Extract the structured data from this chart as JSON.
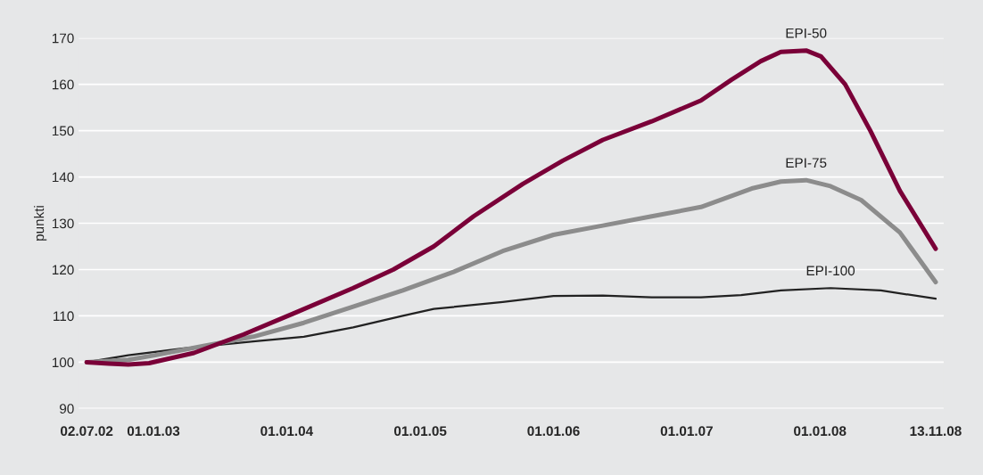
{
  "chart_data": {
    "type": "line",
    "ylabel": "punkti",
    "xlim": [
      "2002-06-10",
      "2008-12-05"
    ],
    "ylim": [
      90,
      170
    ],
    "xticks": [
      {
        "value": "2002-07-02",
        "label": "02.07.02"
      },
      {
        "value": "2003-01-01",
        "label": "01.01.03"
      },
      {
        "value": "2004-01-01",
        "label": "01.01.04"
      },
      {
        "value": "2005-01-01",
        "label": "01.01.05"
      },
      {
        "value": "2006-01-01",
        "label": "01.01.06"
      },
      {
        "value": "2007-01-01",
        "label": "01.01.07"
      },
      {
        "value": "2008-01-01",
        "label": "01.01.08"
      },
      {
        "value": "2008-11-13",
        "label": "13.11.08"
      }
    ],
    "yticks": [
      90,
      100,
      110,
      120,
      130,
      140,
      150,
      160,
      170
    ],
    "grid": "y",
    "legend": false,
    "marker": "none",
    "line_style": "solid",
    "series": [
      {
        "name": "EPI-50",
        "color": "#7a0038",
        "x": [
          "2002-07-02",
          "2002-09-01",
          "2002-10-24",
          "2002-12-20",
          "2003-04-22",
          "2003-09-05",
          "2004-01-19",
          "2004-07-01",
          "2004-10-19",
          "2005-02-07",
          "2005-05-27",
          "2005-10-09",
          "2006-01-26",
          "2006-05-16",
          "2006-09-27",
          "2007-02-09",
          "2007-05-04",
          "2007-07-23",
          "2007-09-16",
          "2007-11-24",
          "2008-01-04",
          "2008-03-10",
          "2008-05-18",
          "2008-08-07",
          "2008-11-13"
        ],
        "values": [
          100,
          99.7,
          99.5,
          99.8,
          102,
          106,
          110.5,
          116,
          120,
          125,
          131.5,
          138.5,
          143.5,
          148,
          152,
          156.5,
          161,
          165,
          167,
          167.3,
          166,
          160,
          150,
          137,
          124.5
        ]
      },
      {
        "name": "EPI-75",
        "color": "#8c8c8c",
        "x": [
          "2002-07-02",
          "2002-10-24",
          "2003-01-05",
          "2003-05-18",
          "2003-10-01",
          "2004-02-17",
          "2004-07-01",
          "2004-11-14",
          "2005-04-02",
          "2005-08-15",
          "2006-01-01",
          "2006-05-16",
          "2006-09-27",
          "2007-02-09",
          "2007-06-28",
          "2007-09-16",
          "2007-11-24",
          "2008-01-30",
          "2008-04-23",
          "2008-08-07",
          "2008-11-13"
        ],
        "values": [
          100,
          100.5,
          101.5,
          103.5,
          105.5,
          108.5,
          112,
          115.5,
          119.5,
          124,
          127.5,
          129.5,
          131.5,
          133.5,
          137.5,
          139,
          139.3,
          138,
          135,
          128,
          117.3
        ]
      },
      {
        "name": "EPI-100",
        "color": "#222222",
        "x": [
          "2002-07-02",
          "2002-10-24",
          "2003-03-25",
          "2003-10-01",
          "2004-02-17",
          "2004-07-01",
          "2004-11-14",
          "2005-02-07",
          "2005-08-15",
          "2006-01-01",
          "2006-05-16",
          "2006-09-27",
          "2007-02-09",
          "2007-05-30",
          "2007-09-16",
          "2008-01-30",
          "2008-06-16",
          "2008-11-13"
        ],
        "values": [
          100,
          101.5,
          103,
          104.5,
          105.5,
          107.5,
          110,
          111.5,
          113,
          114.3,
          114.4,
          114,
          114,
          114.5,
          115.5,
          116,
          115.5,
          113.7
        ]
      }
    ]
  }
}
